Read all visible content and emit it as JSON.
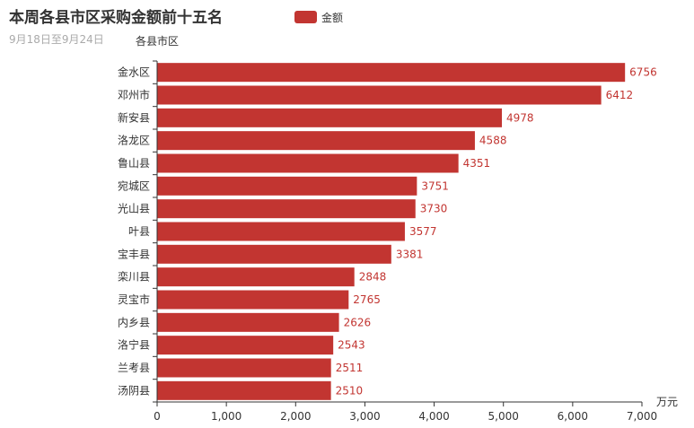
{
  "chart_data": {
    "type": "bar",
    "orientation": "horizontal",
    "title": "本周各县市区采购金额前十五名",
    "subtitle": "9月18日至9月24日",
    "ylabel": "各县市区",
    "xlabel": "万元",
    "legend": {
      "position": "top-center",
      "entries": [
        "金额"
      ]
    },
    "color": "#c23531",
    "categories": [
      "金水区",
      "邓州市",
      "新安县",
      "洛龙区",
      "鲁山县",
      "宛城区",
      "光山县",
      "叶县",
      "宝丰县",
      "栾川县",
      "灵宝市",
      "内乡县",
      "洛宁县",
      "兰考县",
      "汤阴县"
    ],
    "series": [
      {
        "name": "金额",
        "values": [
          6756,
          6412,
          4978,
          4588,
          4351,
          3751,
          3730,
          3577,
          3381,
          2848,
          2765,
          2626,
          2543,
          2511,
          2510
        ]
      }
    ],
    "xlim": [
      0,
      7000
    ],
    "xticks": [
      "0",
      "1,000",
      "2,000",
      "3,000",
      "4,000",
      "5,000",
      "6,000",
      "7,000"
    ],
    "grid": false
  }
}
